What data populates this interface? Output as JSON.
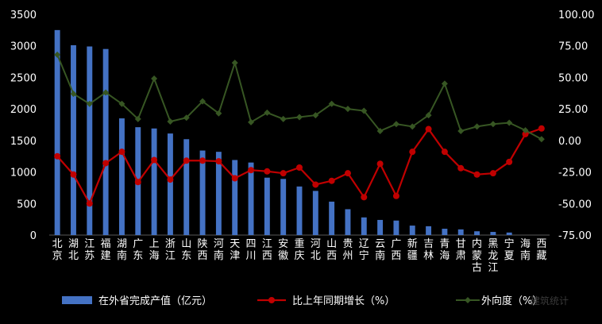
{
  "chart_data": {
    "type": "bar",
    "categories": [
      "北京",
      "湖北",
      "江苏",
      "福建",
      "湖南",
      "广东",
      "上海",
      "浙江",
      "山东",
      "陕西",
      "河南",
      "天津",
      "四川",
      "江西",
      "安徽",
      "重庆",
      "河北",
      "山西",
      "贵州",
      "辽宁",
      "云南",
      "广西",
      "新疆",
      "吉林",
      "青海",
      "甘肃",
      "内蒙古",
      "黑龙江",
      "宁夏",
      "海南",
      "西藏"
    ],
    "series": [
      {
        "name": "在外省完成产值（亿元）",
        "type": "bar",
        "axis": "left",
        "color": "#4472C4",
        "values": [
          3250,
          3010,
          2990,
          2950,
          1850,
          1710,
          1690,
          1610,
          1520,
          1340,
          1320,
          1190,
          1150,
          910,
          890,
          770,
          700,
          530,
          410,
          280,
          240,
          230,
          150,
          140,
          100,
          90,
          60,
          50,
          40,
          0,
          0
        ]
      },
      {
        "name": "比上年同期增长（%）",
        "type": "line",
        "axis": "right",
        "color": "#C00000",
        "values": [
          -12.5,
          -27,
          -50,
          -18,
          -9,
          -33,
          -15.5,
          -31,
          -16,
          -16,
          -16.5,
          -30,
          -23.5,
          -24.5,
          -26,
          -21.5,
          -35,
          -32,
          -26,
          -45,
          -18.5,
          -44,
          -9,
          9,
          -9,
          -22,
          -27,
          -26,
          -17,
          5,
          9.5
        ]
      },
      {
        "name": "外向度（%）",
        "type": "line",
        "axis": "right",
        "color": "#375623",
        "values": [
          68,
          37,
          29,
          38,
          29,
          17,
          49,
          15,
          18,
          31,
          21.5,
          61.5,
          14.5,
          22,
          17,
          18.5,
          20,
          29,
          25,
          23.5,
          7.5,
          13,
          11,
          20,
          45,
          7.5,
          11,
          13,
          14,
          8,
          1
        ]
      }
    ],
    "ylim_left": [
      0,
      3500
    ],
    "yticks_left": [
      "0",
      "500",
      "1000",
      "1500",
      "2000",
      "2500",
      "3000",
      "3500"
    ],
    "ylim_right": [
      -75,
      100
    ],
    "yticks_right": [
      "-75.00",
      "-50.00",
      "-25.00",
      "0.00",
      "25.00",
      "50.00",
      "75.00",
      "100.00"
    ],
    "grid": false,
    "legend": "bottom"
  },
  "watermark": "建筑统计"
}
